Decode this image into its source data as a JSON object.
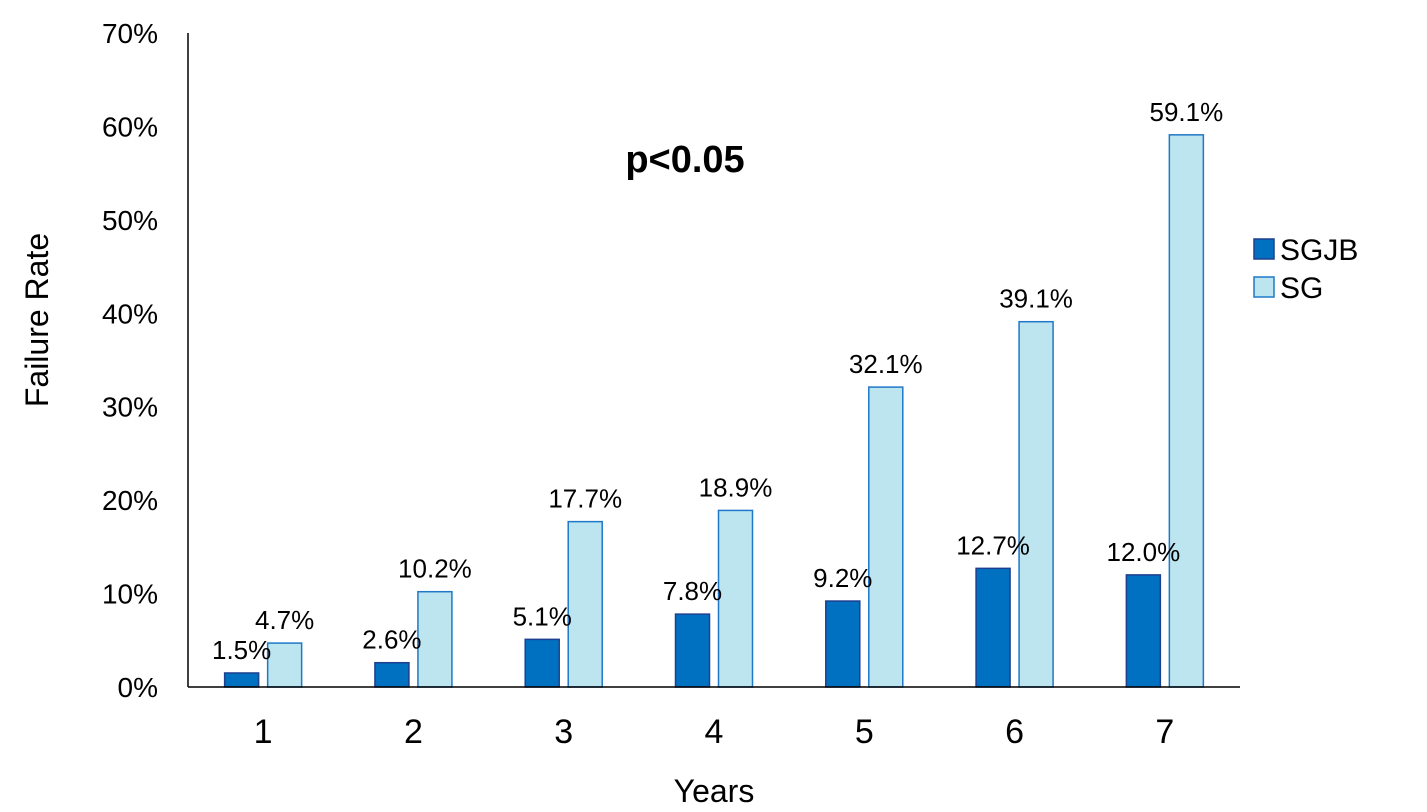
{
  "chart_data": {
    "type": "bar",
    "title": "",
    "xlabel": "Years",
    "ylabel": "Failure Rate",
    "categories": [
      "1",
      "2",
      "3",
      "4",
      "5",
      "6",
      "7"
    ],
    "ylim": [
      0,
      70
    ],
    "yticks": [
      0,
      10,
      20,
      30,
      40,
      50,
      60,
      70
    ],
    "ytick_labels": [
      "0%",
      "10%",
      "20%",
      "30%",
      "40%",
      "50%",
      "60%",
      "70%"
    ],
    "value_suffix": "%",
    "grid": false,
    "legend_position": "right",
    "annotation": "p<0.05",
    "series": [
      {
        "name": "SGJB",
        "values": [
          1.5,
          2.6,
          5.1,
          7.8,
          9.2,
          12.7,
          12.0
        ],
        "labels": [
          "1.5%",
          "2.6%",
          "5.1%",
          "7.8%",
          "9.2%",
          "12.7%",
          "12.0%"
        ],
        "color": "#0070C0",
        "stroke": "#1F3F8F"
      },
      {
        "name": "SG",
        "values": [
          4.7,
          10.2,
          17.7,
          18.9,
          32.1,
          39.1,
          59.1
        ],
        "labels": [
          "4.7%",
          "10.2%",
          "17.7%",
          "18.9%",
          "32.1%",
          "39.1%",
          "59.1%"
        ],
        "color": "#BDE5F0",
        "stroke": "#1F78C8"
      }
    ]
  }
}
